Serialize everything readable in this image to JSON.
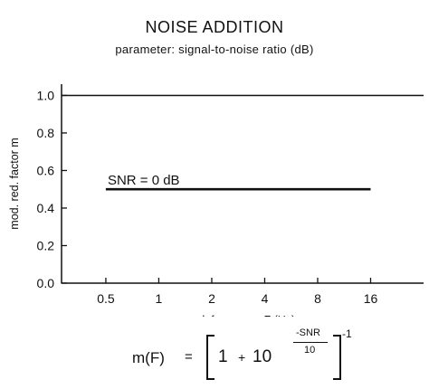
{
  "chart_data": {
    "type": "line",
    "title": "NOISE ADDITION",
    "subtitle": "parameter: signal-to-noise ratio (dB)",
    "xlabel": "mod. frequency F (Hz)",
    "ylabel": "mod. red. factor m",
    "x_scale": "log2",
    "x_ticks": [
      0.5,
      1,
      2,
      4,
      8,
      16
    ],
    "x_tick_labels": [
      "0.5",
      "1",
      "2",
      "4",
      "8",
      "16"
    ],
    "xlim": [
      0.28,
      32
    ],
    "y_ticks": [
      0.0,
      0.2,
      0.4,
      0.6,
      0.8,
      1.0
    ],
    "y_tick_labels": [
      "0.0",
      "0.2",
      "0.4",
      "0.6",
      "0.8",
      "1.0"
    ],
    "ylim": [
      0.0,
      1.06
    ],
    "grid": false,
    "series": [
      {
        "name": "",
        "x": [
          0.28,
          32
        ],
        "y": [
          1.0,
          1.0
        ]
      },
      {
        "name": "SNR = 0 dB",
        "x": [
          0.5,
          16
        ],
        "y": [
          0.5,
          0.5
        ]
      }
    ],
    "annotations": [
      {
        "text": "SNR = 0 dB",
        "x": 0.5,
        "y": 0.55
      }
    ]
  },
  "formula": {
    "lhs": "m(F)",
    "equals": "=",
    "one": "1",
    "plus": "+",
    "base": "10",
    "exp_numerator": "-SNR",
    "exp_denominator": "10",
    "outer_exponent": "-1"
  }
}
